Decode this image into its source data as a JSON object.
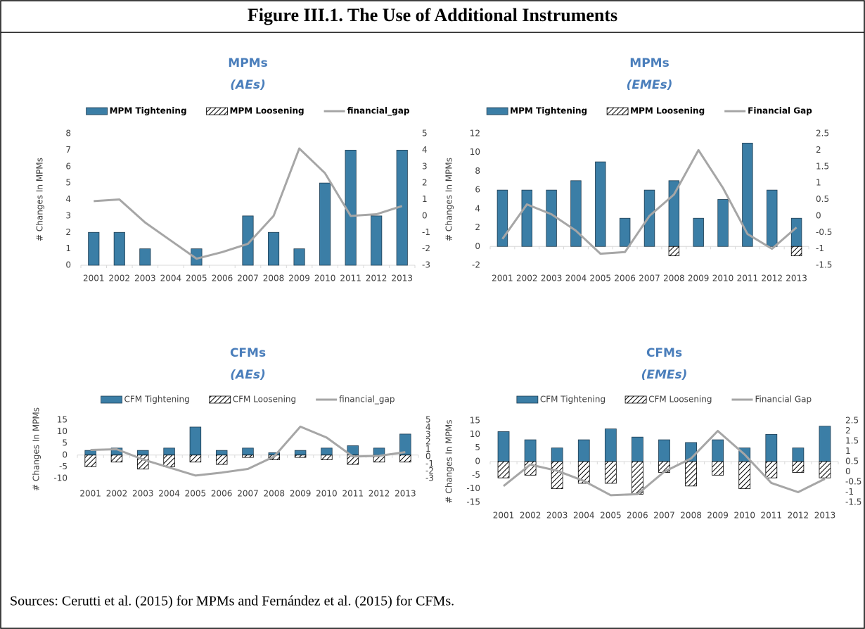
{
  "title": "Figure III.1. The Use of Additional Instruments",
  "source": "Sources: Cerutti et al. (2015) for MPMs and Fernández et al. (2015) for CFMs.",
  "chart_data": [
    {
      "type": "combo",
      "title": "MPMs",
      "subtitle": "(AEs)",
      "y_label": "# Changes In MPMs",
      "categories": [
        "2001",
        "2002",
        "2003",
        "2004",
        "2005",
        "2006",
        "2007",
        "2008",
        "2009",
        "2010",
        "2011",
        "2012",
        "2013"
      ],
      "series": [
        {
          "name": "MPM Tightening",
          "type": "bar",
          "color": "#3b7ea6",
          "values": [
            2,
            2,
            1,
            0,
            1,
            0,
            3,
            2,
            1,
            5,
            7,
            3,
            7
          ]
        },
        {
          "name": "MPM Loosening",
          "type": "bar",
          "color": "#ffffff",
          "hatch": true,
          "values": [
            0,
            0,
            0,
            0,
            0,
            0,
            0,
            0,
            0,
            0,
            0,
            0,
            0
          ]
        },
        {
          "name": "financial_gap",
          "type": "line",
          "axis": "y2",
          "color": "#a6a6a6",
          "values": [
            0.9,
            1.0,
            -0.4,
            -1.5,
            -2.6,
            -2.2,
            -1.7,
            0.0,
            4.1,
            2.6,
            0.0,
            0.1,
            0.6
          ]
        }
      ],
      "ylim": [
        0,
        8
      ],
      "yticks": [
        0,
        1,
        2,
        3,
        4,
        5,
        6,
        7,
        8
      ],
      "y2lim": [
        -3,
        5
      ],
      "y2ticks": [
        -3,
        -2,
        -1,
        0,
        1,
        2,
        3,
        4,
        5
      ]
    },
    {
      "type": "combo",
      "title": "MPMs",
      "subtitle": "(EMEs)",
      "y_label": "# Changes In MPMs",
      "categories": [
        "2001",
        "2002",
        "2003",
        "2004",
        "2005",
        "2006",
        "2007",
        "2008",
        "2009",
        "2010",
        "2011",
        "2012",
        "2013"
      ],
      "series": [
        {
          "name": "MPM Tightening",
          "type": "bar",
          "color": "#3b7ea6",
          "values": [
            6,
            6,
            6,
            7,
            9,
            3,
            6,
            7,
            3,
            5,
            11,
            6,
            3
          ]
        },
        {
          "name": "MPM Loosening",
          "type": "bar",
          "color": "#ffffff",
          "hatch": true,
          "values": [
            0,
            0,
            0,
            0,
            0,
            0,
            0,
            -1,
            0,
            0,
            0,
            0,
            -1
          ]
        },
        {
          "name": "Financial Gap",
          "type": "line",
          "axis": "y2",
          "color": "#a6a6a6",
          "values": [
            -0.7,
            0.35,
            0.05,
            -0.45,
            -1.15,
            -1.1,
            0.0,
            0.65,
            2.0,
            0.85,
            -0.55,
            -1.0,
            -0.35
          ]
        }
      ],
      "ylim": [
        -2,
        12
      ],
      "yticks": [
        -2,
        0,
        2,
        4,
        6,
        8,
        10,
        12
      ],
      "y2lim": [
        -1.5,
        2.5
      ],
      "y2ticks": [
        -1.5,
        -1,
        -0.5,
        0,
        0.5,
        1,
        1.5,
        2,
        2.5
      ]
    },
    {
      "type": "combo",
      "title": "CFMs",
      "subtitle": "(AEs)",
      "y_label": "# Changes In MPMs",
      "categories": [
        "2001",
        "2002",
        "2003",
        "2004",
        "2005",
        "2006",
        "2007",
        "2008",
        "2009",
        "2010",
        "2011",
        "2012",
        "2013"
      ],
      "series": [
        {
          "name": "CFM Tightening",
          "type": "bar",
          "color": "#3b7ea6",
          "values": [
            2,
            3,
            2,
            3,
            12,
            2,
            3,
            1,
            2,
            3,
            4,
            3,
            9
          ]
        },
        {
          "name": "CFM Loosening",
          "type": "bar",
          "color": "#ffffff",
          "hatch": true,
          "values": [
            -5,
            -3,
            -6,
            -5,
            -3,
            -4,
            -1,
            -2,
            -1,
            -2,
            -4,
            -3,
            -3
          ]
        },
        {
          "name": "financial_gap",
          "type": "line",
          "axis": "y2",
          "color": "#a6a6a6",
          "values": [
            0.9,
            1.0,
            -0.4,
            -1.5,
            -2.6,
            -2.2,
            -1.7,
            0.0,
            4.1,
            2.6,
            0.0,
            0.1,
            0.6
          ]
        }
      ],
      "ylim": [
        -10,
        15
      ],
      "yticks": [
        -10,
        -5,
        0,
        5,
        10,
        15
      ],
      "y2lim": [
        -3,
        5
      ],
      "y2ticks": [
        -3,
        -2,
        -1,
        0,
        1,
        2,
        3,
        4,
        5
      ]
    },
    {
      "type": "combo",
      "title": "CFMs",
      "subtitle": "(EMEs)",
      "y_label": "# Changes In MPMs",
      "categories": [
        "2001",
        "2002",
        "2003",
        "2004",
        "2005",
        "2006",
        "2007",
        "2008",
        "2009",
        "2010",
        "2011",
        "2012",
        "2013"
      ],
      "series": [
        {
          "name": "CFM Tightening",
          "type": "bar",
          "color": "#3b7ea6",
          "values": [
            11,
            8,
            5,
            8,
            12,
            9,
            8,
            7,
            8,
            5,
            10,
            5,
            13
          ]
        },
        {
          "name": "CFM Loosening",
          "type": "bar",
          "color": "#ffffff",
          "hatch": true,
          "values": [
            -6,
            -5,
            -10,
            -8,
            -8,
            -12,
            -4,
            -9,
            -5,
            -10,
            -6,
            -4,
            -6
          ]
        },
        {
          "name": "Financial Gap",
          "type": "line",
          "axis": "y2",
          "color": "#a6a6a6",
          "values": [
            -0.7,
            0.35,
            0.05,
            -0.45,
            -1.15,
            -1.1,
            0.0,
            0.65,
            2.0,
            0.85,
            -0.55,
            -1.0,
            -0.35
          ]
        }
      ],
      "ylim": [
        -15,
        15
      ],
      "yticks": [
        -15,
        -10,
        -5,
        0,
        5,
        10,
        15
      ],
      "y2lim": [
        -1.5,
        2.5
      ],
      "y2ticks": [
        -1.5,
        -1,
        -0.5,
        0,
        0.5,
        1,
        1.5,
        2,
        2.5
      ]
    }
  ]
}
